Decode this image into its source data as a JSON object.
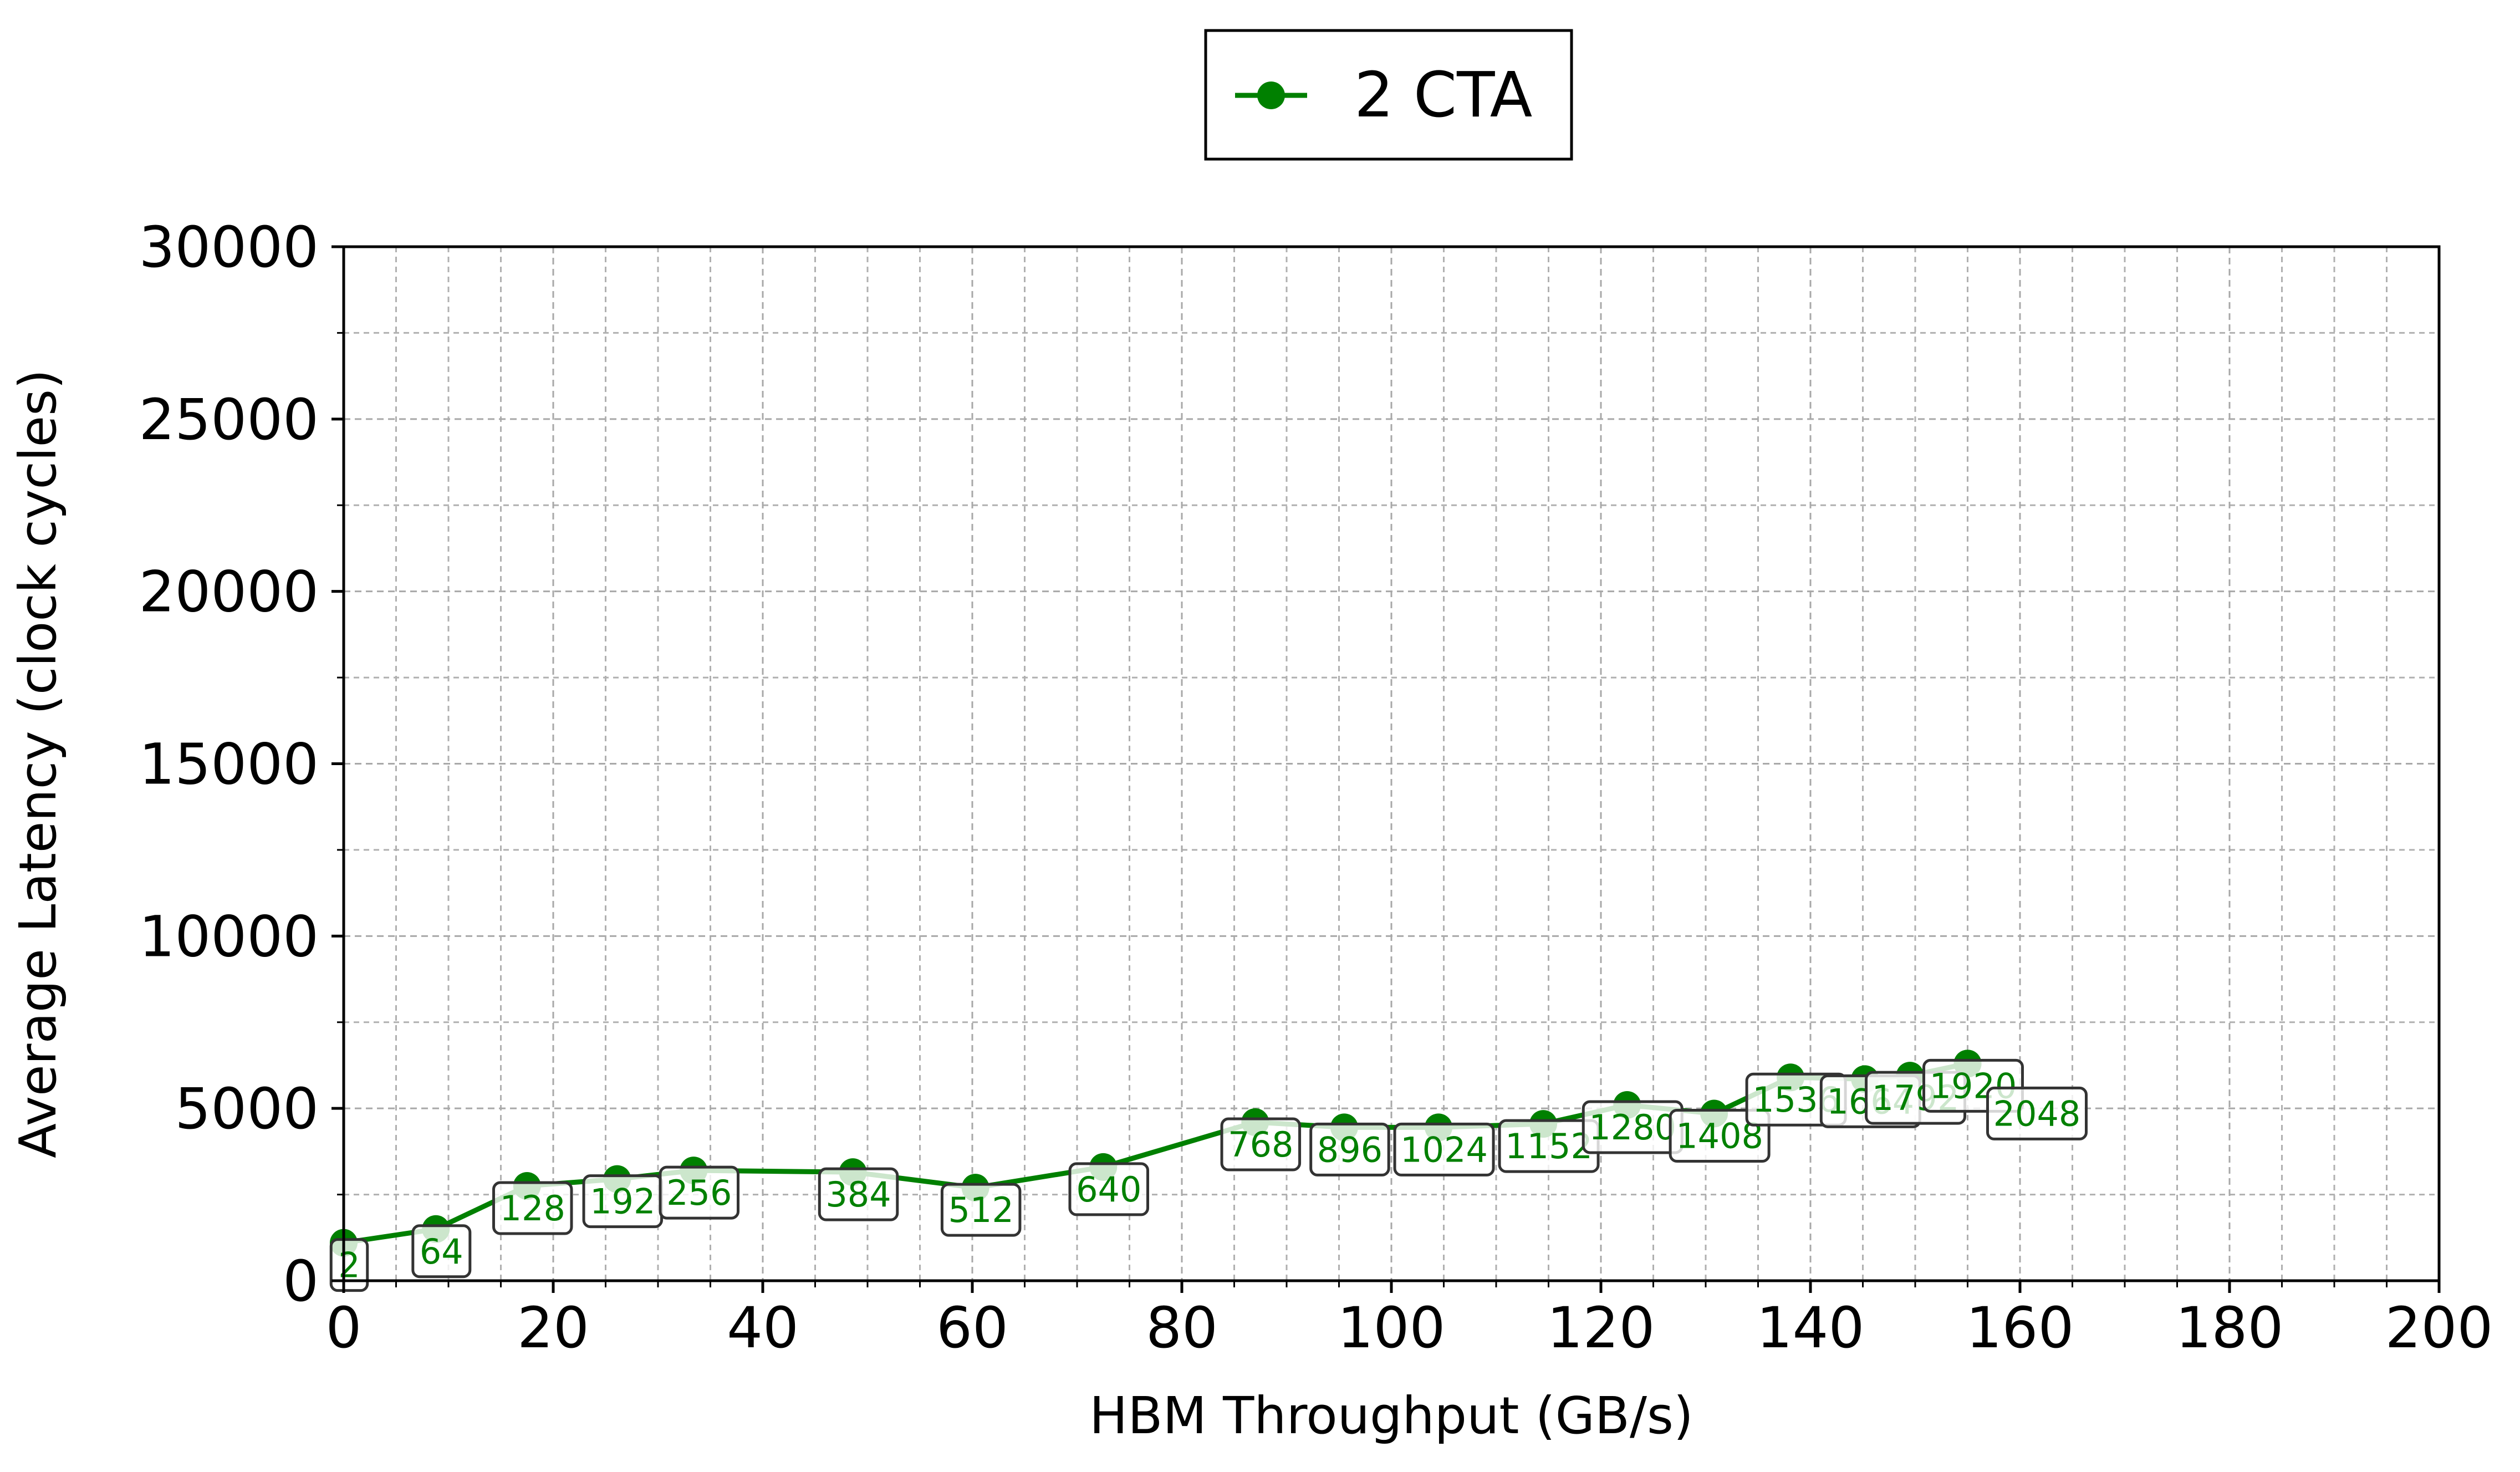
{
  "chart_data": {
    "type": "line",
    "title": "",
    "xlabel": "HBM Throughput (GB/s)",
    "ylabel": "Average Latency (clock cycles)",
    "xlim": [
      0,
      200
    ],
    "ylim": [
      0,
      30000
    ],
    "xticks": [
      0,
      20,
      40,
      60,
      80,
      100,
      120,
      140,
      160,
      180,
      200
    ],
    "yticks": [
      0,
      5000,
      10000,
      15000,
      20000,
      25000,
      30000
    ],
    "grid": true,
    "legend_placement": "top-center",
    "series": [
      {
        "name": "2 CTA",
        "color": "#008000",
        "marker": "circle",
        "points": [
          {
            "x": 0.0,
            "y": 1100,
            "label": "2"
          },
          {
            "x": 8.8,
            "y": 1500,
            "label": "64"
          },
          {
            "x": 17.5,
            "y": 2750,
            "label": "128"
          },
          {
            "x": 26.1,
            "y": 2950,
            "label": "192"
          },
          {
            "x": 33.4,
            "y": 3200,
            "label": "256"
          },
          {
            "x": 48.6,
            "y": 3150,
            "label": "384"
          },
          {
            "x": 60.3,
            "y": 2700,
            "label": "512"
          },
          {
            "x": 72.5,
            "y": 3300,
            "label": "640"
          },
          {
            "x": 87.0,
            "y": 4600,
            "label": "768"
          },
          {
            "x": 95.5,
            "y": 4450,
            "label": "896"
          },
          {
            "x": 104.5,
            "y": 4450,
            "label": "1024"
          },
          {
            "x": 114.5,
            "y": 4550,
            "label": "1152"
          },
          {
            "x": 122.5,
            "y": 5100,
            "label": "1280"
          },
          {
            "x": 130.8,
            "y": 4850,
            "label": "1408"
          },
          {
            "x": 138.1,
            "y": 5900,
            "label": "1536"
          },
          {
            "x": 145.2,
            "y": 5850,
            "label": "1664"
          },
          {
            "x": 149.5,
            "y": 5950,
            "label": "1792"
          },
          {
            "x": 155.0,
            "y": 6300,
            "label": "1920"
          },
          {
            "x": 155.0,
            "y": 6300,
            "label": "2048"
          }
        ]
      }
    ]
  }
}
